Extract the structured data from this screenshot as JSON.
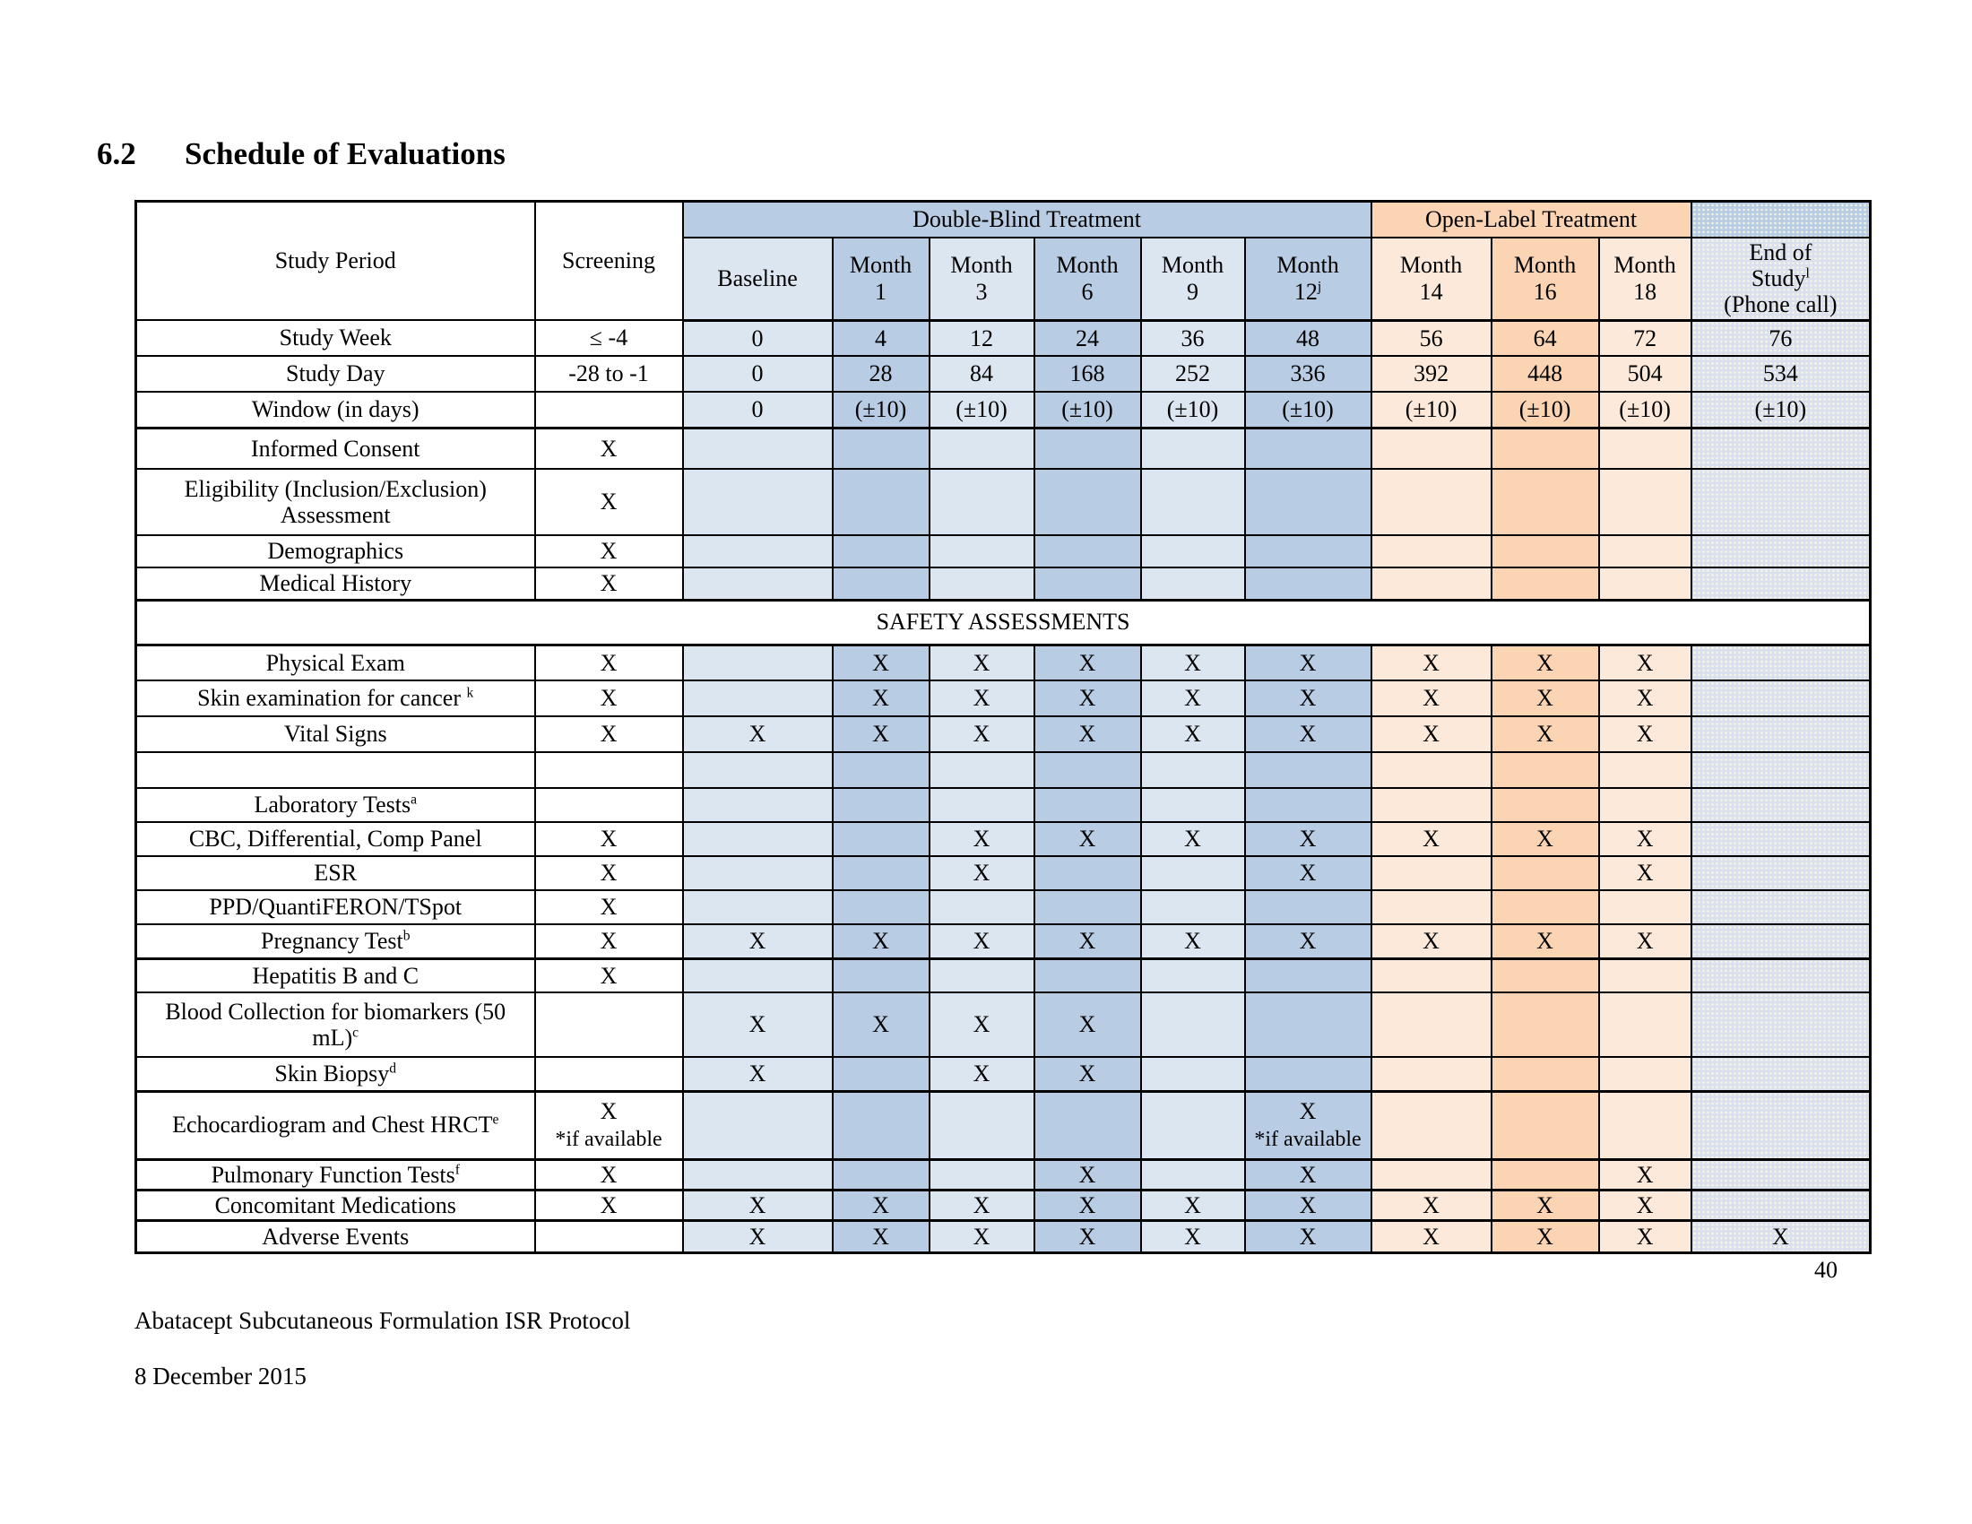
{
  "page": {
    "section_number": "6.2",
    "section_title": "Schedule of Evaluations",
    "page_number": "40",
    "footer_protocol": "Abatacept Subcutaneous Formulation ISR Protocol",
    "footer_date": "8 December 2015"
  },
  "colors": {
    "blue_light": "#dce6f1",
    "blue_dark": "#b8cce4",
    "orange_light": "#fde9d9",
    "orange_dark": "#fbd4b4",
    "end_column_fill": "#dbe0ef",
    "border": "#000000"
  },
  "table": {
    "corner_label": "Study Period",
    "screening_header": "Screening",
    "bands": {
      "double_blind": "Double-Blind Treatment",
      "open_label": "Open-Label Treatment"
    },
    "row_headers": {
      "week": "Study Week",
      "day": "Study Day",
      "window": "Window (in days)"
    },
    "screening_values": {
      "week": "≤ -4",
      "day": "-28 to -1",
      "window": ""
    },
    "columns": [
      {
        "key": "baseline",
        "lines": [
          "Baseline"
        ],
        "sup": "",
        "shade": "blue-light",
        "week": "0",
        "day": "0",
        "window": "0"
      },
      {
        "key": "month1",
        "lines": [
          "Month",
          "1"
        ],
        "sup": "",
        "shade": "blue-dark",
        "week": "4",
        "day": "28",
        "window": "(±10)"
      },
      {
        "key": "month3",
        "lines": [
          "Month",
          "3"
        ],
        "sup": "",
        "shade": "blue-light",
        "week": "12",
        "day": "84",
        "window": "(±10)"
      },
      {
        "key": "month6",
        "lines": [
          "Month",
          "6"
        ],
        "sup": "",
        "shade": "blue-dark",
        "week": "24",
        "day": "168",
        "window": "(±10)"
      },
      {
        "key": "month9",
        "lines": [
          "Month",
          "9"
        ],
        "sup": "",
        "shade": "blue-light",
        "week": "36",
        "day": "252",
        "window": "(±10)"
      },
      {
        "key": "month12",
        "lines": [
          "Month",
          "12"
        ],
        "sup": "j",
        "shade": "blue-dark",
        "week": "48",
        "day": "336",
        "window": "(±10)"
      },
      {
        "key": "month14",
        "lines": [
          "Month",
          "14"
        ],
        "sup": "",
        "shade": "orange-light",
        "week": "56",
        "day": "392",
        "window": "(±10)"
      },
      {
        "key": "month16",
        "lines": [
          "Month",
          "16"
        ],
        "sup": "",
        "shade": "orange-dark",
        "week": "64",
        "day": "448",
        "window": "(±10)"
      },
      {
        "key": "month18",
        "lines": [
          "Month",
          "18"
        ],
        "sup": "",
        "shade": "orange-light",
        "week": "72",
        "day": "504",
        "window": "(±10)"
      }
    ],
    "end_column": {
      "lines": [
        "End of",
        "Study",
        "(Phone call)"
      ],
      "sup": "l",
      "sup_after_line": 2,
      "week": "76",
      "day": "534",
      "window": "(±10)"
    },
    "rows": [
      {
        "label": "Informed Consent",
        "sup": "",
        "indent": 1,
        "screening": "X",
        "cells": [
          "",
          "",
          "",
          "",
          "",
          "",
          "",
          "",
          ""
        ],
        "end": ""
      },
      {
        "label": "Eligibility (Inclusion/Exclusion) Assessment",
        "sup": "",
        "indent": 0,
        "screening": "X",
        "cells": [
          "",
          "",
          "",
          "",
          "",
          "",
          "",
          "",
          ""
        ],
        "end": ""
      },
      {
        "label": "Demographics",
        "sup": "",
        "indent": 0,
        "screening": "X",
        "cells": [
          "",
          "",
          "",
          "",
          "",
          "",
          "",
          "",
          ""
        ],
        "end": ""
      },
      {
        "label": "Medical History",
        "sup": "",
        "indent": 0,
        "screening": "X",
        "cells": [
          "",
          "",
          "",
          "",
          "",
          "",
          "",
          "",
          ""
        ],
        "end": ""
      },
      {
        "section": "SAFETY ASSESSMENTS"
      },
      {
        "label": "Physical Exam",
        "sup": "",
        "indent": 0,
        "screening": "X",
        "cells": [
          "",
          "X",
          "X",
          "X",
          "X",
          "X",
          "X",
          "X",
          "X"
        ],
        "end": ""
      },
      {
        "label": "Skin examination for cancer ",
        "sup": "k",
        "indent": 0,
        "screening": "X",
        "cells": [
          "",
          "X",
          "X",
          "X",
          "X",
          "X",
          "X",
          "X",
          "X"
        ],
        "end": ""
      },
      {
        "label": "Vital Signs",
        "sup": "",
        "indent": 0,
        "screening": "X",
        "cells": [
          "X",
          "X",
          "X",
          "X",
          "X",
          "X",
          "X",
          "X",
          "X"
        ],
        "end": ""
      },
      {
        "label": "",
        "sup": "",
        "indent": 0,
        "screening": "",
        "cells": [
          "",
          "",
          "",
          "",
          "",
          "",
          "",
          "",
          ""
        ],
        "end": ""
      },
      {
        "label": "Laboratory Tests",
        "sup": "a",
        "indent": 0,
        "screening": "",
        "cells": [
          "",
          "",
          "",
          "",
          "",
          "",
          "",
          "",
          ""
        ],
        "end": ""
      },
      {
        "label": "CBC, Differential, Comp Panel",
        "sup": "",
        "indent": 2,
        "screening": "X",
        "cells": [
          "",
          "",
          "X",
          "X",
          "X",
          "X",
          "X",
          "X",
          "X"
        ],
        "end": ""
      },
      {
        "label": "ESR",
        "sup": "",
        "indent": 2,
        "screening": "X",
        "cells": [
          "",
          "",
          "X",
          "",
          "",
          "X",
          "",
          "",
          "X"
        ],
        "end": ""
      },
      {
        "label": "PPD/QuantiFERON/TSpot",
        "sup": "",
        "indent": 2,
        "screening": "X",
        "cells": [
          "",
          "",
          "",
          "",
          "",
          "",
          "",
          "",
          ""
        ],
        "end": ""
      },
      {
        "label": "Pregnancy Test",
        "sup": "b",
        "indent": 2,
        "screening": "X",
        "cells": [
          "X",
          "X",
          "X",
          "X",
          "X",
          "X",
          "X",
          "X",
          "X"
        ],
        "end": ""
      },
      {
        "label": "Hepatitis B and C",
        "sup": "",
        "indent": 1,
        "screening": "X",
        "cells": [
          "",
          "",
          "",
          "",
          "",
          "",
          "",
          "",
          ""
        ],
        "end": ""
      },
      {
        "label": "Blood Collection for biomarkers (50 mL)",
        "sup": "c",
        "indent": 0,
        "screening": "",
        "cells": [
          "X",
          "X",
          "X",
          "X",
          "",
          "",
          "",
          "",
          ""
        ],
        "end": ""
      },
      {
        "label": "Skin Biopsy",
        "sup": "d",
        "indent": 0,
        "screening": "",
        "cells": [
          "X",
          "",
          "X",
          "X",
          "",
          "",
          "",
          "",
          ""
        ],
        "end": ""
      },
      {
        "label": "Echocardiogram and Chest HRCT",
        "sup": "e",
        "indent": 0,
        "screening": {
          "v": "X",
          "note": "*if available"
        },
        "cells": [
          "",
          "",
          "",
          "",
          "",
          {
            "v": "X",
            "note": "*if available"
          },
          "",
          "",
          ""
        ],
        "end": ""
      },
      {
        "label": "Pulmonary Function Tests",
        "sup": "f",
        "indent": 0,
        "screening": "X",
        "cells": [
          "",
          "",
          "",
          "X",
          "",
          "X",
          "",
          "",
          "X"
        ],
        "end": ""
      },
      {
        "label": "Concomitant Medications",
        "sup": "",
        "indent": 0,
        "screening": "X",
        "cells": [
          "X",
          "X",
          "X",
          "X",
          "X",
          "X",
          "X",
          "X",
          "X"
        ],
        "end": ""
      },
      {
        "label": "Adverse Events",
        "sup": "",
        "indent": 0,
        "screening": "",
        "cells": [
          "X",
          "X",
          "X",
          "X",
          "X",
          "X",
          "X",
          "X",
          "X"
        ],
        "end": "X"
      }
    ]
  }
}
